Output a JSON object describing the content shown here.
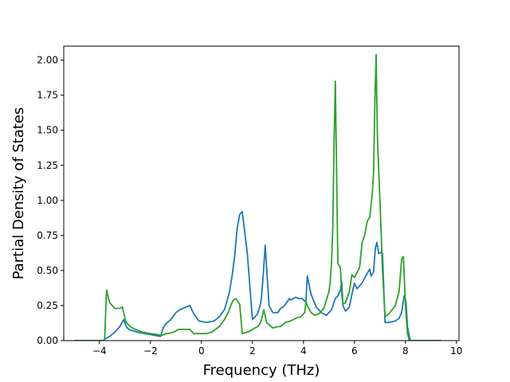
{
  "chart_data": {
    "type": "line",
    "title": "",
    "xlabel": "Frequency (THz)",
    "ylabel": "Partial Density of States",
    "xlim": [
      -5.4,
      10.1
    ],
    "ylim": [
      0.0,
      2.1
    ],
    "xticks": [
      -4,
      -2,
      0,
      2,
      4,
      6,
      8,
      10
    ],
    "xtick_labels": [
      "−4",
      "−2",
      "0",
      "2",
      "4",
      "6",
      "8",
      "10"
    ],
    "yticks": [
      0.0,
      0.25,
      0.5,
      0.75,
      1.0,
      1.25,
      1.5,
      1.75,
      2.0
    ],
    "ytick_labels": [
      "0.00",
      "0.25",
      "0.50",
      "0.75",
      "1.00",
      "1.25",
      "1.50",
      "1.75",
      "2.00"
    ],
    "grid": false,
    "legend": "none",
    "series": [
      {
        "color": "#1f77b4",
        "x": [
          -5.0,
          -3.85,
          -3.8,
          -3.6,
          -3.4,
          -3.2,
          -3.05,
          -2.95,
          -2.85,
          -2.7,
          -2.5,
          -2.2,
          -1.9,
          -1.6,
          -1.5,
          -1.4,
          -1.2,
          -1.0,
          -0.85,
          -0.6,
          -0.45,
          -0.3,
          -0.1,
          0.2,
          0.5,
          0.7,
          0.9,
          1.0,
          1.1,
          1.2,
          1.3,
          1.4,
          1.5,
          1.6,
          1.8,
          2.0,
          2.2,
          2.3,
          2.35,
          2.42,
          2.5,
          2.65,
          2.8,
          3.0,
          3.1,
          3.2,
          3.3,
          3.45,
          3.5,
          3.6,
          3.7,
          3.8,
          3.95,
          4.05,
          4.1,
          4.15,
          4.3,
          4.5,
          4.7,
          4.9,
          5.1,
          5.25,
          5.35,
          5.45,
          5.5,
          5.55,
          5.65,
          5.8,
          5.9,
          6.0,
          6.1,
          6.3,
          6.5,
          6.6,
          6.65,
          6.75,
          6.82,
          6.88,
          6.95,
          7.05,
          7.1,
          7.2,
          7.35,
          7.6,
          7.75,
          7.85,
          7.95,
          8.02,
          8.08,
          8.15,
          8.2,
          9.4
        ],
        "y": [
          0.0,
          0.0,
          0.01,
          0.03,
          0.06,
          0.1,
          0.15,
          0.1,
          0.08,
          0.07,
          0.06,
          0.05,
          0.04,
          0.03,
          0.09,
          0.12,
          0.15,
          0.2,
          0.22,
          0.24,
          0.25,
          0.19,
          0.14,
          0.13,
          0.14,
          0.17,
          0.22,
          0.28,
          0.35,
          0.46,
          0.6,
          0.8,
          0.9,
          0.92,
          0.62,
          0.15,
          0.19,
          0.25,
          0.3,
          0.46,
          0.68,
          0.25,
          0.2,
          0.2,
          0.23,
          0.24,
          0.26,
          0.3,
          0.29,
          0.3,
          0.31,
          0.3,
          0.3,
          0.28,
          0.29,
          0.46,
          0.33,
          0.24,
          0.2,
          0.18,
          0.22,
          0.3,
          0.32,
          0.36,
          0.42,
          0.25,
          0.21,
          0.24,
          0.33,
          0.41,
          0.37,
          0.41,
          0.48,
          0.51,
          0.46,
          0.49,
          0.66,
          0.7,
          0.62,
          0.63,
          0.62,
          0.13,
          0.13,
          0.14,
          0.16,
          0.2,
          0.32,
          0.28,
          0.1,
          0.03,
          0.0,
          0.0
        ]
      },
      {
        "color": "#2ca02c",
        "x": [
          -5.0,
          -3.8,
          -3.72,
          -3.6,
          -3.4,
          -3.2,
          -3.1,
          -3.0,
          -2.95,
          -2.8,
          -2.6,
          -2.3,
          -2.0,
          -1.6,
          -1.5,
          -1.4,
          -1.3,
          -1.1,
          -0.9,
          -0.6,
          -0.45,
          -0.3,
          -0.1,
          0.2,
          0.4,
          0.7,
          0.9,
          1.05,
          1.15,
          1.25,
          1.35,
          1.42,
          1.5,
          1.6,
          1.8,
          2.0,
          2.2,
          2.3,
          2.35,
          2.45,
          2.55,
          2.8,
          3.0,
          3.1,
          3.3,
          3.5,
          3.7,
          3.9,
          4.05,
          4.1,
          4.15,
          4.3,
          4.45,
          4.6,
          4.8,
          5.0,
          5.05,
          5.1,
          5.15,
          5.2,
          5.25,
          5.3,
          5.35,
          5.45,
          5.5,
          5.55,
          5.65,
          5.8,
          5.9,
          6.0,
          6.2,
          6.3,
          6.4,
          6.5,
          6.6,
          6.7,
          6.75,
          6.8,
          6.85,
          6.9,
          7.0,
          7.1,
          7.2,
          7.35,
          7.6,
          7.75,
          7.85,
          7.92,
          8.0,
          8.08,
          8.15,
          8.2,
          9.4
        ],
        "y": [
          0.0,
          0.0,
          0.36,
          0.27,
          0.23,
          0.23,
          0.24,
          0.16,
          0.13,
          0.1,
          0.08,
          0.06,
          0.05,
          0.04,
          0.04,
          0.05,
          0.05,
          0.06,
          0.08,
          0.08,
          0.08,
          0.05,
          0.05,
          0.05,
          0.06,
          0.1,
          0.15,
          0.2,
          0.25,
          0.29,
          0.3,
          0.28,
          0.26,
          0.05,
          0.06,
          0.08,
          0.1,
          0.12,
          0.15,
          0.22,
          0.13,
          0.09,
          0.1,
          0.1,
          0.13,
          0.14,
          0.16,
          0.17,
          0.2,
          0.28,
          0.25,
          0.2,
          0.18,
          0.19,
          0.23,
          0.35,
          0.42,
          0.55,
          0.8,
          1.4,
          1.85,
          1.2,
          0.55,
          0.52,
          0.33,
          0.26,
          0.27,
          0.35,
          0.47,
          0.45,
          0.52,
          0.7,
          0.75,
          0.85,
          0.88,
          1.05,
          1.2,
          1.7,
          2.04,
          1.45,
          1.0,
          0.5,
          0.17,
          0.19,
          0.25,
          0.35,
          0.58,
          0.6,
          0.25,
          0.05,
          0.0,
          0.0,
          0.0
        ]
      }
    ]
  }
}
